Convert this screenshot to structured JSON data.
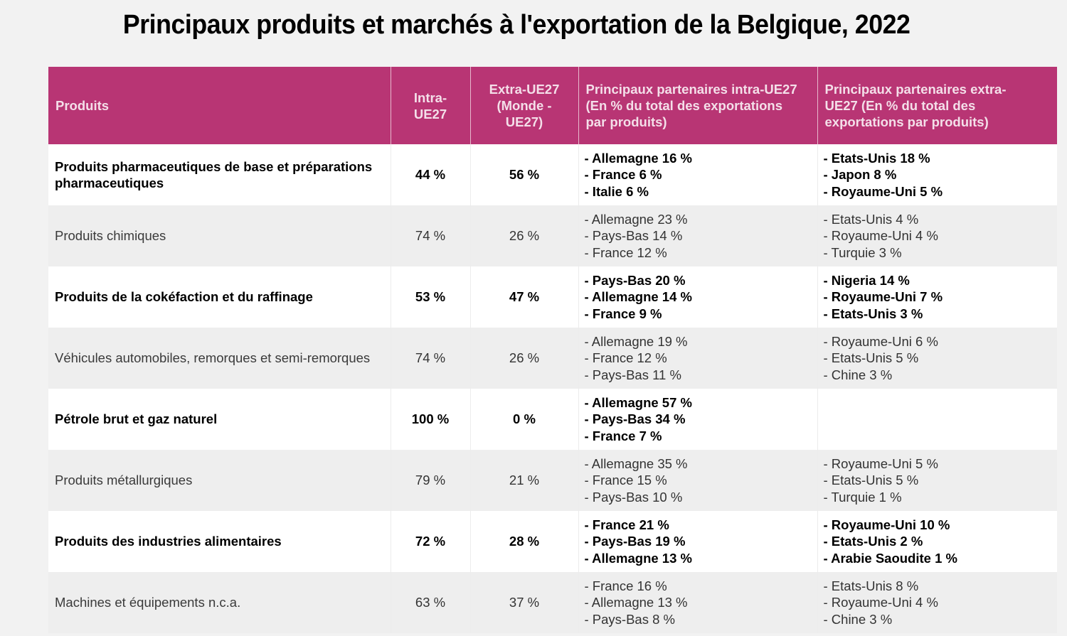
{
  "title": "Principaux produits et marchés à l'exportation de la Belgique, 2022",
  "colors": {
    "header_bg": "#b83574",
    "header_text": "#f4dfe9",
    "row_odd_bg": "#ffffff",
    "row_even_bg": "#eeeeee",
    "page_bg": "#f2f2f2"
  },
  "table": {
    "headers": {
      "produits": "Produits",
      "intra": "Intra-UE27",
      "extra": "Extra-UE27 (Monde - UE27)",
      "partners_intra": "Principaux partenaires intra-UE27 (En % du total des exportations par produits)",
      "partners_extra": "Principaux partenaires extra-UE27 (En % du total des exportations par produits)"
    },
    "rows": [
      {
        "product": "Produits pharmaceutiques de base et préparations pharmaceutiques",
        "intra": "44 %",
        "extra": "56 %",
        "partners_intra": [
          "- Allemagne 16 %",
          "- France 6 %",
          "- Italie 6 %"
        ],
        "partners_extra": [
          "- Etats-Unis 18 %",
          "- Japon 8 %",
          "- Royaume-Uni 5 %"
        ]
      },
      {
        "product": "Produits chimiques",
        "intra": "74 %",
        "extra": "26 %",
        "partners_intra": [
          "- Allemagne 23 %",
          "- Pays-Bas 14 %",
          "- France 12 %"
        ],
        "partners_extra": [
          "- Etats-Unis 4 %",
          "- Royaume-Uni 4 %",
          "- Turquie 3 %"
        ]
      },
      {
        "product": "Produits de la cokéfaction et du raffinage",
        "intra": "53 %",
        "extra": "47 %",
        "partners_intra": [
          "- Pays-Bas 20 %",
          "- Allemagne 14 %",
          "- France 9 %"
        ],
        "partners_extra": [
          "- Nigeria 14 %",
          "- Royaume-Uni 7 %",
          "- Etats-Unis 3 %"
        ]
      },
      {
        "product": "Véhicules automobiles, remorques et semi-remorques",
        "intra": "74 %",
        "extra": "26 %",
        "partners_intra": [
          "- Allemagne 19 %",
          "- France 12 %",
          "- Pays-Bas 11 %"
        ],
        "partners_extra": [
          "- Royaume-Uni 6 %",
          "- Etats-Unis 5 %",
          "- Chine 3 %"
        ]
      },
      {
        "product": "Pétrole brut et gaz naturel",
        "intra": "100 %",
        "extra": "0 %",
        "partners_intra": [
          "- Allemagne 57 %",
          "- Pays-Bas 34 %",
          "- France 7 %"
        ],
        "partners_extra": []
      },
      {
        "product": "Produits métallurgiques",
        "intra": "79 %",
        "extra": "21 %",
        "partners_intra": [
          "- Allemagne 35 %",
          "- France 15 %",
          "- Pays-Bas 10 %"
        ],
        "partners_extra": [
          "- Royaume-Uni 5 %",
          "- Etats-Unis 5 %",
          "- Turquie 1 %"
        ]
      },
      {
        "product": "Produits des industries alimentaires",
        "intra": "72 %",
        "extra": "28 %",
        "partners_intra": [
          "- France 21 %",
          "- Pays-Bas 19 %",
          "- Allemagne 13 %"
        ],
        "partners_extra": [
          "- Royaume-Uni 10 %",
          "- Etats-Unis 2 %",
          "- Arabie Saoudite 1 %"
        ]
      },
      {
        "product": "Machines et équipements n.c.a.",
        "intra": "63 %",
        "extra": "37 %",
        "partners_intra": [
          "- France 16 %",
          "- Allemagne 13 %",
          "- Pays-Bas 8 %"
        ],
        "partners_extra": [
          "- Etats-Unis 8 %",
          "- Royaume-Uni 4 %",
          "- Chine 3 %"
        ]
      }
    ]
  }
}
